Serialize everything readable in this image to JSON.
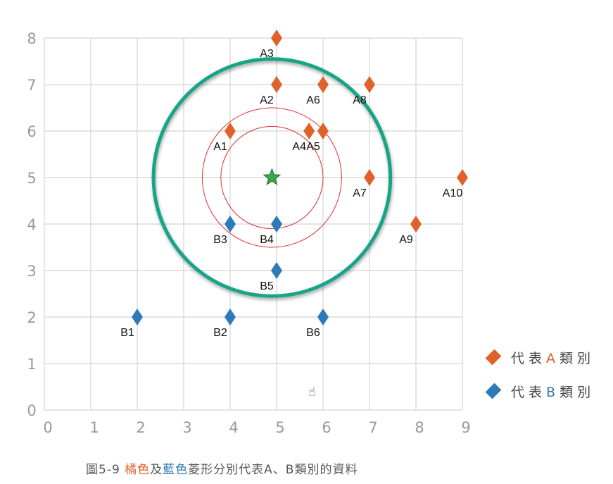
{
  "chart_data": {
    "type": "scatter",
    "xlim": [
      0,
      9
    ],
    "ylim": [
      0,
      8
    ],
    "xticks": [
      0,
      1,
      2,
      3,
      4,
      5,
      6,
      7,
      8,
      9
    ],
    "yticks": [
      0,
      1,
      2,
      3,
      4,
      5,
      6,
      7,
      8
    ],
    "grid": true,
    "series": [
      {
        "name": "代表A類別",
        "color": "#E0622B",
        "marker": "diamond",
        "points": [
          {
            "label": "A1",
            "x": 4,
            "y": 6
          },
          {
            "label": "A2",
            "x": 5,
            "y": 7
          },
          {
            "label": "A3",
            "x": 5,
            "y": 8
          },
          {
            "label": "A4",
            "x": 5.7,
            "y": 6
          },
          {
            "label": "A5",
            "x": 6,
            "y": 6
          },
          {
            "label": "A6",
            "x": 6,
            "y": 7
          },
          {
            "label": "A7",
            "x": 7,
            "y": 5
          },
          {
            "label": "A8",
            "x": 7,
            "y": 7
          },
          {
            "label": "A9",
            "x": 8,
            "y": 4
          },
          {
            "label": "A10",
            "x": 9,
            "y": 5
          }
        ]
      },
      {
        "name": "代表B類別",
        "color": "#2E7AB8",
        "marker": "diamond",
        "points": [
          {
            "label": "B1",
            "x": 2,
            "y": 2
          },
          {
            "label": "B2",
            "x": 4,
            "y": 2
          },
          {
            "label": "B3",
            "x": 4,
            "y": 4
          },
          {
            "label": "B4",
            "x": 5,
            "y": 4
          },
          {
            "label": "B5",
            "x": 5,
            "y": 3
          },
          {
            "label": "B6",
            "x": 6,
            "y": 2
          }
        ]
      }
    ],
    "query_point": {
      "x": 4.9,
      "y": 5,
      "marker": "star",
      "color": "#3BAA4A"
    },
    "circles": [
      {
        "cx": 4.9,
        "cy": 5,
        "r": 1.1,
        "color": "#D9302F"
      },
      {
        "cx": 4.9,
        "cy": 5,
        "r": 1.5,
        "color": "#D9302F"
      },
      {
        "cx": 4.9,
        "cy": 5,
        "r": 2.55,
        "color": "#17A589"
      }
    ],
    "legend_placement": "bottom-right"
  },
  "legend": {
    "a_prefix": "代表",
    "a_letter": "A",
    "a_suffix": "類別",
    "b_prefix": "代表",
    "b_letter": "B",
    "b_suffix": "類別"
  },
  "caption": {
    "prefix": "圖5-9 ",
    "orange_word": "橘色",
    "mid": "及",
    "blue_word": "藍色",
    "suffix": "菱形分別代表A、B類別的資料"
  },
  "colors": {
    "orange": "#E0622B",
    "blue": "#2E7AB8",
    "green": "#3BAA4A",
    "teal": "#17A589",
    "red": "#D9302F",
    "grid": "#D4D4D4",
    "tick": "#9A9A9A"
  },
  "cursor_icon": "hand-pointer"
}
